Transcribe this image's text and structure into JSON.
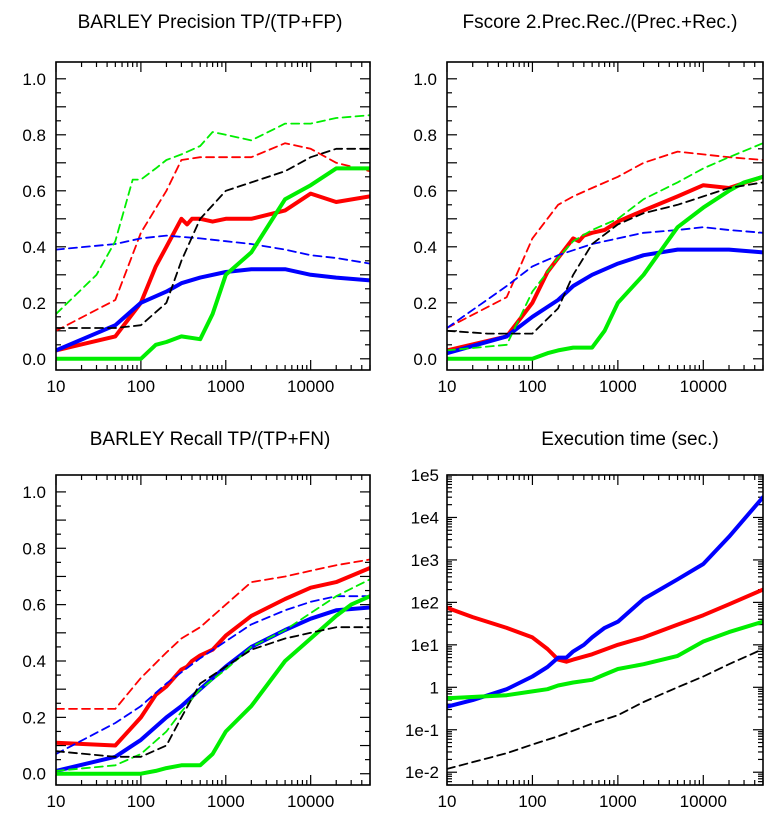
{
  "colors": {
    "red": "#ff0000",
    "blue": "#0000ff",
    "green": "#00ee00",
    "black": "#000000"
  },
  "chart_data": [
    {
      "type": "line",
      "title": "BARLEY  Precision  TP/(TP+FP)",
      "xscale": "log",
      "xlim": [
        10,
        50000
      ],
      "ylim": [
        -0.04,
        1.06
      ],
      "xtick_labels": [
        "10",
        "100",
        "1000",
        "10000"
      ],
      "ytick_labels": [
        "0.0",
        "0.2",
        "0.4",
        "0.6",
        "0.8",
        "1.0"
      ],
      "series": [
        {
          "color": "red",
          "style": "solid",
          "x": [
            10,
            50,
            100,
            150,
            200,
            300,
            350,
            400,
            500,
            700,
            1000,
            2000,
            5000,
            10000,
            20000,
            50000
          ],
          "y": [
            0.03,
            0.08,
            0.2,
            0.33,
            0.4,
            0.5,
            0.48,
            0.5,
            0.5,
            0.49,
            0.5,
            0.5,
            0.53,
            0.59,
            0.56,
            0.58
          ]
        },
        {
          "color": "red",
          "style": "dashed",
          "x": [
            10,
            50,
            100,
            200,
            300,
            500,
            1000,
            2000,
            5000,
            10000,
            20000,
            50000
          ],
          "y": [
            0.1,
            0.21,
            0.45,
            0.6,
            0.71,
            0.72,
            0.72,
            0.72,
            0.77,
            0.75,
            0.7,
            0.67
          ]
        },
        {
          "color": "blue",
          "style": "solid",
          "x": [
            10,
            50,
            100,
            200,
            300,
            500,
            1000,
            2000,
            5000,
            10000,
            20000,
            50000
          ],
          "y": [
            0.03,
            0.12,
            0.2,
            0.24,
            0.27,
            0.29,
            0.31,
            0.32,
            0.32,
            0.3,
            0.29,
            0.28
          ]
        },
        {
          "color": "blue",
          "style": "dashed",
          "x": [
            10,
            50,
            100,
            200,
            500,
            1000,
            2000,
            5000,
            10000,
            20000,
            50000
          ],
          "y": [
            0.39,
            0.41,
            0.43,
            0.44,
            0.43,
            0.42,
            0.41,
            0.39,
            0.37,
            0.36,
            0.34
          ]
        },
        {
          "color": "green",
          "style": "solid",
          "x": [
            10,
            50,
            100,
            150,
            200,
            300,
            500,
            700,
            1000,
            2000,
            5000,
            10000,
            20000,
            30000,
            50000
          ],
          "y": [
            0.0,
            0.0,
            0.0,
            0.05,
            0.06,
            0.08,
            0.07,
            0.16,
            0.3,
            0.38,
            0.57,
            0.62,
            0.68,
            0.68,
            0.68
          ]
        },
        {
          "color": "green",
          "style": "dashed",
          "x": [
            10,
            30,
            50,
            80,
            100,
            150,
            200,
            300,
            500,
            700,
            1000,
            2000,
            5000,
            10000,
            20000,
            50000
          ],
          "y": [
            0.16,
            0.3,
            0.42,
            0.64,
            0.64,
            0.68,
            0.71,
            0.73,
            0.76,
            0.81,
            0.8,
            0.78,
            0.84,
            0.84,
            0.86,
            0.87
          ]
        },
        {
          "color": "black",
          "style": "dashed",
          "x": [
            10,
            50,
            100,
            200,
            300,
            500,
            1000,
            2000,
            5000,
            10000,
            20000,
            50000
          ],
          "y": [
            0.11,
            0.11,
            0.12,
            0.2,
            0.35,
            0.5,
            0.6,
            0.63,
            0.67,
            0.72,
            0.75,
            0.75
          ]
        }
      ]
    },
    {
      "type": "line",
      "title": "Fscore  2.Prec.Rec./(Prec.+Rec.)",
      "xscale": "log",
      "xlim": [
        10,
        50000
      ],
      "ylim": [
        -0.04,
        1.06
      ],
      "xtick_labels": [
        "10",
        "100",
        "1000",
        "10000"
      ],
      "ytick_labels": [
        "0.0",
        "0.2",
        "0.4",
        "0.6",
        "0.8",
        "1.0"
      ],
      "series": [
        {
          "color": "red",
          "style": "solid",
          "x": [
            10,
            50,
            100,
            150,
            200,
            300,
            350,
            400,
            500,
            700,
            1000,
            2000,
            5000,
            10000,
            20000,
            50000
          ],
          "y": [
            0.03,
            0.08,
            0.2,
            0.31,
            0.36,
            0.43,
            0.42,
            0.44,
            0.45,
            0.46,
            0.49,
            0.53,
            0.58,
            0.62,
            0.61,
            0.65
          ]
        },
        {
          "color": "red",
          "style": "dashed",
          "x": [
            10,
            50,
            100,
            200,
            300,
            500,
            1000,
            2000,
            5000,
            10000,
            20000,
            50000
          ],
          "y": [
            0.11,
            0.22,
            0.43,
            0.55,
            0.58,
            0.61,
            0.65,
            0.7,
            0.74,
            0.73,
            0.72,
            0.71
          ]
        },
        {
          "color": "blue",
          "style": "solid",
          "x": [
            10,
            50,
            100,
            200,
            300,
            500,
            1000,
            2000,
            5000,
            10000,
            20000,
            50000
          ],
          "y": [
            0.02,
            0.08,
            0.15,
            0.21,
            0.26,
            0.3,
            0.34,
            0.37,
            0.39,
            0.39,
            0.39,
            0.38
          ]
        },
        {
          "color": "blue",
          "style": "dashed",
          "x": [
            10,
            50,
            100,
            200,
            500,
            1000,
            2000,
            5000,
            10000,
            20000,
            50000
          ],
          "y": [
            0.11,
            0.26,
            0.33,
            0.37,
            0.41,
            0.43,
            0.45,
            0.46,
            0.47,
            0.46,
            0.45
          ]
        },
        {
          "color": "green",
          "style": "solid",
          "x": [
            10,
            50,
            100,
            150,
            200,
            300,
            500,
            700,
            1000,
            2000,
            5000,
            10000,
            20000,
            30000,
            50000
          ],
          "y": [
            0.0,
            0.0,
            0.0,
            0.02,
            0.03,
            0.04,
            0.04,
            0.1,
            0.2,
            0.3,
            0.47,
            0.54,
            0.6,
            0.63,
            0.65
          ]
        },
        {
          "color": "green",
          "style": "dashed",
          "x": [
            10,
            50,
            100,
            200,
            300,
            500,
            1000,
            2000,
            5000,
            10000,
            20000,
            50000
          ],
          "y": [
            0.03,
            0.05,
            0.24,
            0.36,
            0.42,
            0.46,
            0.5,
            0.57,
            0.63,
            0.68,
            0.72,
            0.77
          ]
        },
        {
          "color": "black",
          "style": "dashed",
          "x": [
            10,
            30,
            50,
            100,
            200,
            300,
            500,
            1000,
            2000,
            5000,
            10000,
            20000,
            50000
          ],
          "y": [
            0.1,
            0.09,
            0.09,
            0.09,
            0.18,
            0.3,
            0.41,
            0.48,
            0.52,
            0.55,
            0.58,
            0.61,
            0.63
          ]
        }
      ]
    },
    {
      "type": "line",
      "title": "BARLEY  Recall  TP/(TP+FN)",
      "xscale": "log",
      "xlim": [
        10,
        50000
      ],
      "ylim": [
        -0.04,
        1.06
      ],
      "xtick_labels": [
        "10",
        "100",
        "1000",
        "10000"
      ],
      "ytick_labels": [
        "0.0",
        "0.2",
        "0.4",
        "0.6",
        "0.8",
        "1.0"
      ],
      "series": [
        {
          "color": "red",
          "style": "solid",
          "x": [
            10,
            50,
            100,
            150,
            200,
            300,
            350,
            400,
            500,
            700,
            1000,
            2000,
            5000,
            10000,
            20000,
            50000
          ],
          "y": [
            0.11,
            0.1,
            0.2,
            0.28,
            0.31,
            0.37,
            0.38,
            0.4,
            0.42,
            0.44,
            0.49,
            0.56,
            0.62,
            0.66,
            0.68,
            0.73
          ]
        },
        {
          "color": "red",
          "style": "dashed",
          "x": [
            10,
            50,
            100,
            200,
            300,
            500,
            1000,
            2000,
            5000,
            10000,
            20000,
            50000
          ],
          "y": [
            0.23,
            0.23,
            0.34,
            0.43,
            0.48,
            0.52,
            0.6,
            0.68,
            0.7,
            0.72,
            0.74,
            0.76
          ]
        },
        {
          "color": "blue",
          "style": "solid",
          "x": [
            10,
            50,
            100,
            200,
            300,
            500,
            1000,
            2000,
            5000,
            10000,
            20000,
            50000
          ],
          "y": [
            0.01,
            0.06,
            0.12,
            0.2,
            0.24,
            0.3,
            0.38,
            0.45,
            0.51,
            0.55,
            0.58,
            0.59
          ]
        },
        {
          "color": "blue",
          "style": "dashed",
          "x": [
            10,
            50,
            100,
            200,
            300,
            500,
            1000,
            2000,
            5000,
            10000,
            20000,
            50000
          ],
          "y": [
            0.07,
            0.18,
            0.24,
            0.32,
            0.36,
            0.41,
            0.47,
            0.53,
            0.58,
            0.61,
            0.63,
            0.63
          ]
        },
        {
          "color": "green",
          "style": "solid",
          "x": [
            10,
            50,
            100,
            150,
            200,
            300,
            500,
            700,
            1000,
            2000,
            5000,
            10000,
            20000,
            30000,
            50000
          ],
          "y": [
            0.0,
            0.0,
            0.0,
            0.01,
            0.02,
            0.03,
            0.03,
            0.07,
            0.15,
            0.24,
            0.4,
            0.48,
            0.56,
            0.6,
            0.63
          ]
        },
        {
          "color": "green",
          "style": "dashed",
          "x": [
            10,
            50,
            100,
            200,
            300,
            500,
            1000,
            2000,
            5000,
            10000,
            20000,
            50000
          ],
          "y": [
            0.01,
            0.03,
            0.07,
            0.15,
            0.22,
            0.3,
            0.37,
            0.45,
            0.51,
            0.57,
            0.63,
            0.69
          ]
        },
        {
          "color": "black",
          "style": "dashed",
          "x": [
            10,
            50,
            100,
            200,
            300,
            500,
            1000,
            2000,
            5000,
            10000,
            20000,
            50000
          ],
          "y": [
            0.08,
            0.06,
            0.06,
            0.1,
            0.2,
            0.32,
            0.38,
            0.44,
            0.48,
            0.5,
            0.52,
            0.52
          ]
        }
      ]
    },
    {
      "type": "line",
      "title": "Execution time (sec.)",
      "xscale": "log",
      "yscale": "log",
      "xlim": [
        10,
        50000
      ],
      "ylim": [
        0.005,
        100000
      ],
      "xtick_labels": [
        "10",
        "100",
        "1000",
        "10000"
      ],
      "ytick_labels": [
        "1e-2",
        "1e-1",
        "1",
        "1e1",
        "1e2",
        "1e3",
        "1e4",
        "1e5"
      ],
      "series": [
        {
          "color": "red",
          "style": "solid",
          "x": [
            10,
            20,
            50,
            100,
            150,
            200,
            250,
            300,
            500,
            1000,
            2000,
            5000,
            10000,
            20000,
            50000
          ],
          "y": [
            75,
            45,
            25,
            15,
            8,
            4.5,
            4,
            4.5,
            6,
            10,
            15,
            30,
            50,
            90,
            200
          ]
        },
        {
          "color": "blue",
          "style": "solid",
          "x": [
            10,
            20,
            50,
            100,
            150,
            200,
            250,
            300,
            400,
            500,
            700,
            1000,
            2000,
            5000,
            10000,
            20000,
            50000
          ],
          "y": [
            0.35,
            0.5,
            0.9,
            1.8,
            3,
            5,
            5,
            7,
            10,
            15,
            25,
            35,
            120,
            350,
            800,
            3500,
            30000
          ]
        },
        {
          "color": "green",
          "style": "solid",
          "x": [
            10,
            50,
            100,
            150,
            200,
            300,
            500,
            700,
            1000,
            2000,
            5000,
            10000,
            20000,
            50000
          ],
          "y": [
            0.55,
            0.65,
            0.8,
            0.9,
            1.1,
            1.3,
            1.5,
            2,
            2.7,
            3.5,
            5.5,
            12,
            20,
            35
          ]
        },
        {
          "color": "black",
          "style": "dashed",
          "x": [
            10,
            50,
            100,
            200,
            500,
            1000,
            2000,
            5000,
            10000,
            20000,
            50000
          ],
          "y": [
            0.012,
            0.028,
            0.045,
            0.07,
            0.14,
            0.22,
            0.45,
            1,
            1.8,
            3.5,
            8
          ]
        }
      ]
    }
  ]
}
